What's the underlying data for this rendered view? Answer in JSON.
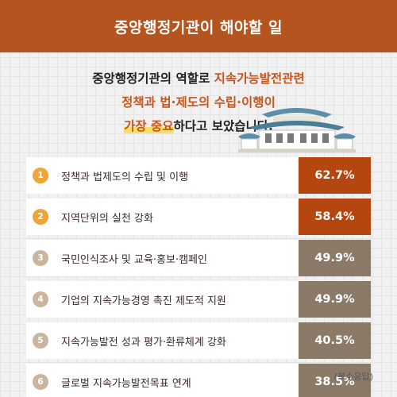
{
  "header": {
    "title": "중앙행정기관이 해야할 일"
  },
  "intro": {
    "line1_plain": "중앙행정기관의 역할로 ",
    "line1_hl": "지속가능발전관련",
    "line2_hl": "정책과 법·제도의 수립·이행이",
    "line3_hl": "가장 중요",
    "line3_plain": "하다고 보았습니다."
  },
  "colors": {
    "header": "#b5541e",
    "top_accent": "#b5460f",
    "other_accent": "#8b7a68",
    "top_number": "#efa53a",
    "other_number": "#c9b69e",
    "highlight_text": "#c9541c",
    "highlight_marker": "#f7df6a"
  },
  "chart_data": {
    "type": "bar",
    "categories": [
      "정책과 법제도의 수립 및 이행",
      "지역단위의 실천 강화",
      "국민인식조사 및 교육·홍보·캠페인",
      "기업의 지속가능경영 촉진 제도적 지원",
      "지속가능발전 성과 평가·환류체계 강화",
      "글로벌 지속가능발전목표 연계"
    ],
    "values": [
      62.7,
      58.4,
      49.9,
      49.9,
      40.5,
      38.5
    ],
    "value_labels": [
      "62.7%",
      "58.4%",
      "49.9%",
      "49.9%",
      "40.5%",
      "38.5%"
    ],
    "ranks": [
      "1",
      "2",
      "3",
      "4",
      "5",
      "6"
    ],
    "highlighted_ranks": [
      1,
      2
    ],
    "footnote": "(복수응답)"
  }
}
